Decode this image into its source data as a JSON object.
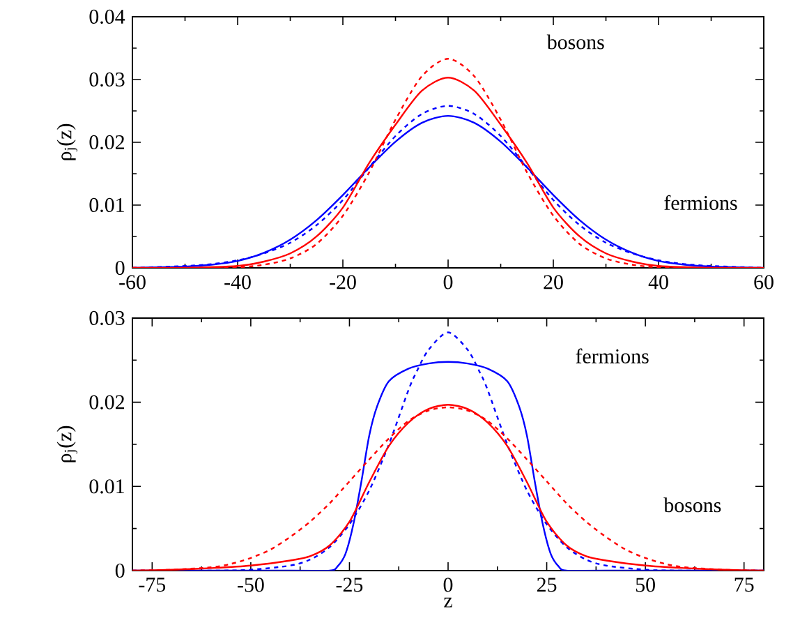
{
  "chart_data": [
    {
      "type": "line",
      "ylabel": "ρ$_{j}$(z)",
      "xlim": [
        -60,
        60
      ],
      "ylim": [
        0,
        0.04
      ],
      "xticks": [
        -60,
        -40,
        -20,
        0,
        20,
        40,
        60
      ],
      "yticks": [
        0,
        0.01,
        0.02,
        0.03,
        0.04
      ],
      "grid": false,
      "marker": "none",
      "annotations": [
        "bosons",
        "fermions"
      ],
      "series": [
        {
          "color": "#0000ff",
          "line_style": "solid",
          "x": [
            -60,
            -50,
            -45,
            -40,
            -35,
            -30,
            -25,
            -20,
            -15,
            -10,
            -5,
            0,
            5,
            10,
            15,
            20,
            25,
            30,
            35,
            40,
            45,
            50,
            60
          ],
          "values": [
            0,
            0.0002,
            0.0005,
            0.0011,
            0.0024,
            0.0045,
            0.0076,
            0.0116,
            0.016,
            0.0201,
            0.0231,
            0.0242,
            0.0231,
            0.0201,
            0.016,
            0.0116,
            0.0076,
            0.0045,
            0.0024,
            0.0011,
            0.0005,
            0.0002,
            0
          ]
        },
        {
          "color": "#0000ff",
          "line_style": "dashed",
          "x": [
            -60,
            -50,
            -45,
            -40,
            -35,
            -30,
            -25,
            -20,
            -15,
            -10,
            -5,
            0,
            5,
            10,
            15,
            20,
            25,
            30,
            35,
            40,
            45,
            50,
            60
          ],
          "values": [
            0,
            0.0003,
            0.0006,
            0.0012,
            0.0023,
            0.004,
            0.0068,
            0.0108,
            0.016,
            0.021,
            0.0245,
            0.0258,
            0.0245,
            0.021,
            0.016,
            0.0108,
            0.0068,
            0.004,
            0.0023,
            0.0012,
            0.0006,
            0.0003,
            0
          ]
        },
        {
          "color": "#ff0000",
          "line_style": "solid",
          "x": [
            -60,
            -50,
            -40,
            -35,
            -30,
            -25,
            -20,
            -15,
            -10,
            -5,
            0,
            5,
            10,
            15,
            20,
            25,
            30,
            35,
            40,
            50,
            60
          ],
          "values": [
            0,
            0,
            0.0003,
            0.001,
            0.0023,
            0.005,
            0.0096,
            0.0167,
            0.0228,
            0.0282,
            0.0303,
            0.0282,
            0.0228,
            0.0167,
            0.0096,
            0.005,
            0.0023,
            0.001,
            0.0003,
            0,
            0
          ]
        },
        {
          "color": "#ff0000",
          "line_style": "dashed",
          "x": [
            -60,
            -50,
            -40,
            -35,
            -30,
            -25,
            -20,
            -15,
            -10,
            -5,
            0,
            5,
            10,
            15,
            20,
            25,
            30,
            35,
            40,
            50,
            60
          ],
          "values": [
            0,
            0,
            0.0001,
            0.0005,
            0.0015,
            0.0038,
            0.0083,
            0.0152,
            0.0236,
            0.0305,
            0.0333,
            0.0305,
            0.0236,
            0.0152,
            0.0083,
            0.0038,
            0.0015,
            0.0005,
            0.0001,
            0,
            0
          ]
        }
      ]
    },
    {
      "type": "line",
      "xlabel": "z",
      "ylabel": "ρ$_{j}$(z)",
      "xlim": [
        -80,
        80
      ],
      "ylim": [
        0,
        0.03
      ],
      "xticks": [
        -75,
        -50,
        -25,
        0,
        25,
        50,
        75
      ],
      "yticks": [
        0,
        0.01,
        0.02,
        0.03
      ],
      "grid": false,
      "marker": "none",
      "annotations": [
        "fermions",
        "bosons"
      ],
      "series": [
        {
          "color": "#0000ff",
          "line_style": "solid",
          "x": [
            -80,
            -40,
            -30,
            -28,
            -26,
            -24,
            -22,
            -20,
            -18,
            -15,
            -10,
            -5,
            0,
            5,
            10,
            15,
            18,
            20,
            22,
            24,
            26,
            28,
            30,
            40,
            80
          ],
          "values": [
            0,
            0,
            0,
            0.0005,
            0.002,
            0.0055,
            0.0105,
            0.016,
            0.0195,
            0.0225,
            0.024,
            0.0246,
            0.0248,
            0.0246,
            0.024,
            0.0225,
            0.0195,
            0.016,
            0.0105,
            0.0055,
            0.002,
            0.0005,
            0,
            0,
            0
          ]
        },
        {
          "color": "#0000ff",
          "line_style": "dashed",
          "x": [
            -80,
            -60,
            -50,
            -40,
            -35,
            -30,
            -25,
            -20,
            -15,
            -10,
            -8,
            -5,
            0,
            5,
            8,
            10,
            15,
            20,
            25,
            30,
            35,
            40,
            50,
            60,
            80
          ],
          "values": [
            0,
            0,
            0.0001,
            0.0006,
            0.0013,
            0.0028,
            0.0055,
            0.0095,
            0.015,
            0.0215,
            0.0236,
            0.0262,
            0.0283,
            0.0262,
            0.0236,
            0.0215,
            0.015,
            0.0095,
            0.0055,
            0.0028,
            0.0013,
            0.0006,
            0.0001,
            0,
            0
          ]
        },
        {
          "color": "#ff0000",
          "line_style": "solid",
          "x": [
            -80,
            -70,
            -60,
            -50,
            -40,
            -35,
            -30,
            -25,
            -20,
            -15,
            -10,
            -5,
            0,
            5,
            10,
            15,
            20,
            25,
            30,
            35,
            40,
            50,
            60,
            70,
            80
          ],
          "values": [
            0,
            0.0001,
            0.0003,
            0.0006,
            0.0012,
            0.0017,
            0.003,
            0.0058,
            0.0105,
            0.0148,
            0.0176,
            0.0192,
            0.0197,
            0.0192,
            0.0176,
            0.0148,
            0.0105,
            0.0058,
            0.003,
            0.0017,
            0.0012,
            0.0006,
            0.0003,
            0.0001,
            0
          ]
        },
        {
          "color": "#ff0000",
          "line_style": "dashed",
          "x": [
            -80,
            -70,
            -60,
            -55,
            -50,
            -45,
            -40,
            -35,
            -30,
            -25,
            -20,
            -15,
            -10,
            -5,
            0,
            5,
            10,
            15,
            20,
            25,
            30,
            35,
            40,
            45,
            50,
            55,
            60,
            70,
            80
          ],
          "values": [
            0,
            0.0001,
            0.0004,
            0.0008,
            0.0015,
            0.0025,
            0.004,
            0.0058,
            0.008,
            0.0106,
            0.0132,
            0.0157,
            0.0178,
            0.019,
            0.0194,
            0.019,
            0.0178,
            0.0157,
            0.0132,
            0.0106,
            0.008,
            0.0058,
            0.004,
            0.0025,
            0.0015,
            0.0008,
            0.0004,
            0.0001,
            0
          ]
        }
      ]
    }
  ]
}
